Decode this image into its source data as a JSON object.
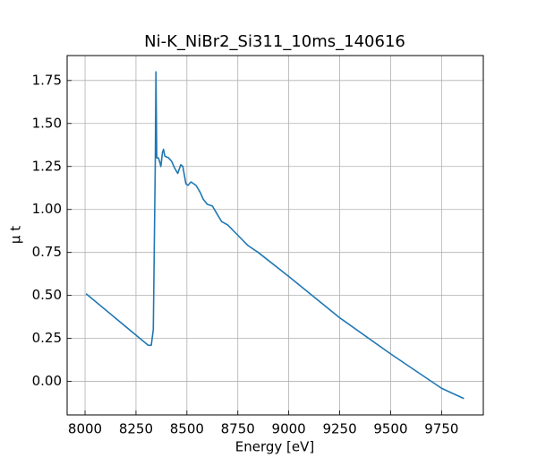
{
  "chart_data": {
    "type": "line",
    "title": "Ni-K_NiBr2_Si311_10ms_140616",
    "x_label": "Energy [eV]",
    "y_label": "μ t",
    "x": [
      8005,
      8310,
      8325,
      8335,
      8340,
      8345,
      8348,
      8352,
      8360,
      8368,
      8372,
      8380,
      8385,
      8392,
      8410,
      8425,
      8440,
      8455,
      8470,
      8480,
      8495,
      8505,
      8520,
      8545,
      8565,
      8580,
      8600,
      8625,
      8645,
      8670,
      8700,
      8750,
      8800,
      8850,
      9000,
      9250,
      9500,
      9750,
      9860
    ],
    "series": [
      {
        "name": "Ni-K_NiBr2_Si311_10ms_140616",
        "color": "#1f77b4",
        "values": [
          0.51,
          0.21,
          0.21,
          0.3,
          0.8,
          1.3,
          1.8,
          1.3,
          1.3,
          1.27,
          1.25,
          1.33,
          1.35,
          1.31,
          1.3,
          1.28,
          1.24,
          1.21,
          1.26,
          1.25,
          1.15,
          1.14,
          1.16,
          1.14,
          1.1,
          1.06,
          1.03,
          1.02,
          0.98,
          0.93,
          0.91,
          0.85,
          0.79,
          0.75,
          0.61,
          0.37,
          0.16,
          -0.04,
          -0.1
        ]
      }
    ],
    "xlim": [
      7912,
      9955
    ],
    "xticks": [
      8000,
      8250,
      8500,
      8750,
      9000,
      9250,
      9500,
      9750
    ],
    "ylim": [
      -0.195,
      1.895
    ],
    "yticks": [
      {
        "value": 0,
        "label": "0.00"
      },
      0.25,
      {
        "value": 0.5,
        "label": "0.50"
      },
      0.75,
      {
        "value": 1,
        "label": "1.00"
      },
      1.25,
      {
        "value": 1.5,
        "label": "1.50"
      },
      1.75
    ],
    "grid": true
  }
}
